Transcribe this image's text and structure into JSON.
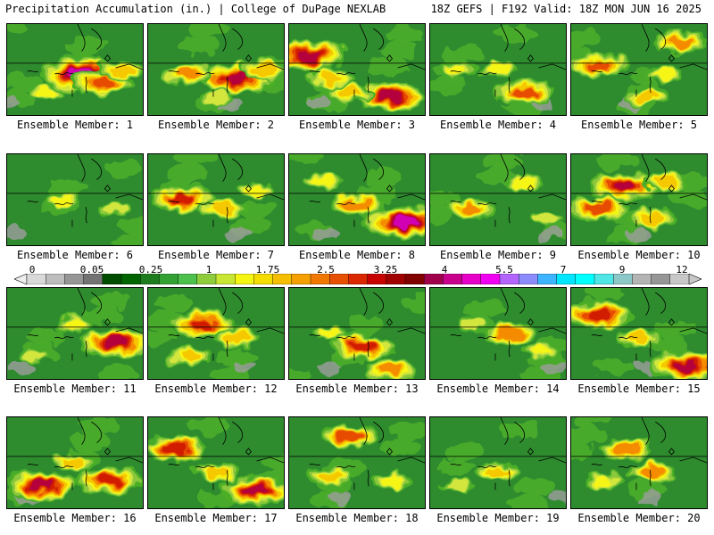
{
  "header": {
    "title_left": "Precipitation Accumulation (in.) | College of DuPage NEXLAB",
    "title_right": "18Z GEFS | F192 Valid: 18Z MON JUN 16 2025"
  },
  "panels": [
    {
      "label": "Ensemble Member: 1",
      "blobs": [
        [
          0.55,
          0.55,
          1.0
        ],
        [
          0.7,
          0.65,
          0.7
        ],
        [
          0.3,
          0.75,
          0.35
        ],
        [
          0.85,
          0.5,
          0.5
        ]
      ]
    },
    {
      "label": "Ensemble Member: 2",
      "blobs": [
        [
          0.65,
          0.6,
          0.9
        ],
        [
          0.3,
          0.55,
          0.6
        ],
        [
          0.85,
          0.5,
          0.5
        ],
        [
          0.5,
          0.8,
          0.3
        ]
      ]
    },
    {
      "label": "Ensemble Member: 3",
      "blobs": [
        [
          0.15,
          0.35,
          0.9
        ],
        [
          0.75,
          0.8,
          0.85
        ],
        [
          0.45,
          0.75,
          0.5
        ],
        [
          0.3,
          0.6,
          0.5
        ]
      ]
    },
    {
      "label": "Ensemble Member: 4",
      "blobs": [
        [
          0.7,
          0.75,
          0.7
        ],
        [
          0.2,
          0.5,
          0.4
        ],
        [
          0.5,
          0.5,
          0.4
        ]
      ]
    },
    {
      "label": "Ensemble Member: 5",
      "blobs": [
        [
          0.2,
          0.45,
          0.7
        ],
        [
          0.8,
          0.2,
          0.6
        ],
        [
          0.55,
          0.8,
          0.45
        ],
        [
          0.7,
          0.55,
          0.4
        ]
      ]
    },
    {
      "label": "Ensemble Member: 6",
      "blobs": [
        [
          0.4,
          0.5,
          0.35
        ],
        [
          0.8,
          0.6,
          0.3
        ]
      ]
    },
    {
      "label": "Ensemble Member: 7",
      "blobs": [
        [
          0.25,
          0.5,
          0.75
        ],
        [
          0.55,
          0.6,
          0.5
        ],
        [
          0.8,
          0.4,
          0.35
        ]
      ]
    },
    {
      "label": "Ensemble Member: 8",
      "blobs": [
        [
          0.85,
          0.75,
          1.0
        ],
        [
          0.5,
          0.55,
          0.6
        ],
        [
          0.25,
          0.3,
          0.4
        ]
      ]
    },
    {
      "label": "Ensemble Member: 9",
      "blobs": [
        [
          0.3,
          0.6,
          0.55
        ],
        [
          0.7,
          0.3,
          0.4
        ],
        [
          0.85,
          0.7,
          0.3
        ]
      ]
    },
    {
      "label": "Ensemble Member: 10",
      "blobs": [
        [
          0.4,
          0.35,
          0.85
        ],
        [
          0.2,
          0.6,
          0.7
        ],
        [
          0.7,
          0.3,
          0.5
        ],
        [
          0.6,
          0.7,
          0.5
        ]
      ]
    },
    {
      "label": "Ensemble Member: 11",
      "blobs": [
        [
          0.8,
          0.6,
          0.85
        ],
        [
          0.5,
          0.4,
          0.4
        ],
        [
          0.2,
          0.75,
          0.3
        ]
      ]
    },
    {
      "label": "Ensemble Member: 12",
      "blobs": [
        [
          0.4,
          0.4,
          0.75
        ],
        [
          0.65,
          0.55,
          0.5
        ],
        [
          0.3,
          0.75,
          0.5
        ]
      ]
    },
    {
      "label": "Ensemble Member: 13",
      "blobs": [
        [
          0.55,
          0.65,
          0.75
        ],
        [
          0.75,
          0.9,
          0.6
        ],
        [
          0.3,
          0.5,
          0.35
        ]
      ]
    },
    {
      "label": "Ensemble Member: 14",
      "blobs": [
        [
          0.6,
          0.5,
          0.6
        ],
        [
          0.8,
          0.7,
          0.4
        ],
        [
          0.3,
          0.4,
          0.25
        ]
      ]
    },
    {
      "label": "Ensemble Member: 15",
      "blobs": [
        [
          0.2,
          0.3,
          0.8
        ],
        [
          0.85,
          0.85,
          0.9
        ],
        [
          0.5,
          0.55,
          0.5
        ]
      ]
    },
    {
      "label": "Ensemble Member: 16",
      "blobs": [
        [
          0.25,
          0.75,
          0.85
        ],
        [
          0.75,
          0.7,
          0.8
        ],
        [
          0.5,
          0.5,
          0.45
        ]
      ]
    },
    {
      "label": "Ensemble Member: 17",
      "blobs": [
        [
          0.2,
          0.35,
          0.75
        ],
        [
          0.8,
          0.8,
          0.85
        ],
        [
          0.5,
          0.6,
          0.5
        ]
      ]
    },
    {
      "label": "Ensemble Member: 18",
      "blobs": [
        [
          0.45,
          0.2,
          0.65
        ],
        [
          0.3,
          0.65,
          0.5
        ],
        [
          0.75,
          0.7,
          0.4
        ]
      ]
    },
    {
      "label": "Ensemble Member: 19",
      "blobs": [
        [
          0.5,
          0.6,
          0.45
        ],
        [
          0.2,
          0.75,
          0.3
        ]
      ]
    },
    {
      "label": "Ensemble Member: 20",
      "blobs": [
        [
          0.4,
          0.35,
          0.6
        ],
        [
          0.6,
          0.6,
          0.55
        ],
        [
          0.25,
          0.7,
          0.4
        ]
      ]
    }
  ],
  "colorbar": {
    "tick_labels": [
      "0",
      "0.05",
      "0.25",
      "1",
      "1.75",
      "2.5",
      "3.25",
      "4",
      "5.5",
      "7",
      "9",
      "12"
    ],
    "colors": [
      "#d9d9d9",
      "#bdbdbd",
      "#969696",
      "#737373",
      "#004d00",
      "#006400",
      "#1e7b1e",
      "#32a032",
      "#4cbf4c",
      "#8fcc3c",
      "#c8e632",
      "#f5f514",
      "#f5dc00",
      "#f5be00",
      "#f5a000",
      "#f07800",
      "#e65000",
      "#dc2800",
      "#c80000",
      "#a00000",
      "#820000",
      "#a0004b",
      "#c8008c",
      "#e600c8",
      "#f000f0",
      "#b464ff",
      "#8c8cff",
      "#3cb4ff",
      "#00e6ff",
      "#00ffff",
      "#50e6e6",
      "#8cc8c8",
      "#b4b4b4",
      "#969696",
      "#c8c8c8"
    ]
  },
  "precip_palette": [
    "#9e9e9e",
    "#2e8b2e",
    "#4caf28",
    "#8bc83c",
    "#d2e63c",
    "#f5f514",
    "#f5c800",
    "#f58c00",
    "#e64b00",
    "#d21e00",
    "#b4003c",
    "#d200b4",
    "#ff3cff"
  ]
}
